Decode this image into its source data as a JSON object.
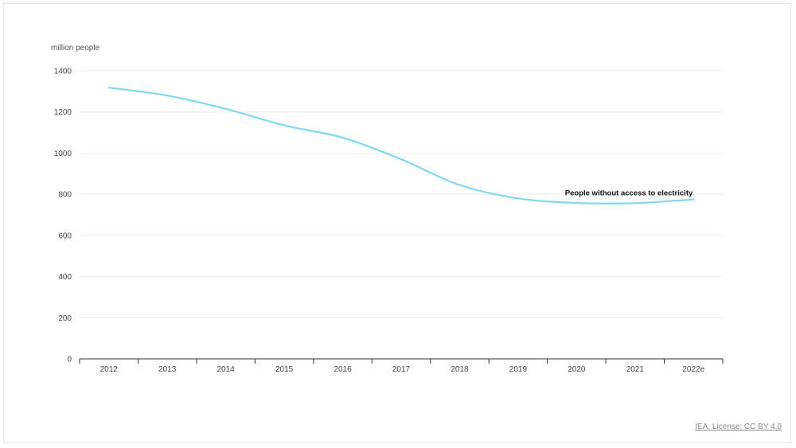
{
  "chart_data": {
    "type": "line",
    "ylabel": "million people",
    "categories": [
      "2012",
      "2013",
      "2014",
      "2015",
      "2016",
      "2017",
      "2018",
      "2019",
      "2020",
      "2021",
      "2022e"
    ],
    "ylim": [
      0,
      1400
    ],
    "yticks": [
      0,
      200,
      400,
      600,
      800,
      1000,
      1200,
      1400
    ],
    "grid": true,
    "series": [
      {
        "name": "People without access to electricity",
        "values": [
          1318,
          1280,
          1215,
          1135,
          1075,
          970,
          845,
          780,
          758,
          757,
          775
        ],
        "color": "#7fd8f2"
      }
    ]
  },
  "source": "IEA. License: CC BY 4.0"
}
